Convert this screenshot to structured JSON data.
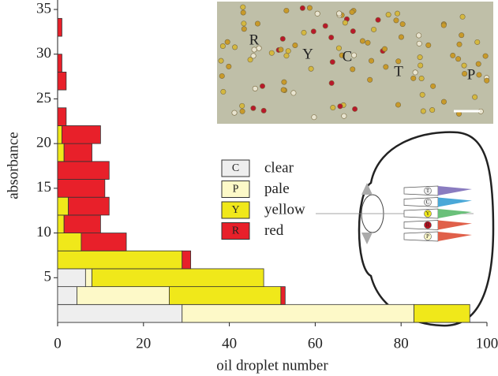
{
  "chart_data": {
    "type": "barh_histogram",
    "xlabel": "oil droplet number",
    "ylabel": "absorbance",
    "bins": [
      0,
      2,
      4,
      6,
      8,
      10,
      12,
      14,
      16,
      18,
      20,
      22,
      24,
      26,
      28,
      30,
      32,
      34
    ],
    "series": [
      {
        "name": "clear",
        "symbol": "C",
        "color": "#eeeeee",
        "values": [
          29,
          4.5,
          6.5,
          0,
          0,
          0,
          0,
          0,
          0,
          0,
          0,
          0,
          0,
          0,
          0,
          0,
          0
        ]
      },
      {
        "name": "pale",
        "symbol": "P",
        "color": "#fdf9c8",
        "values": [
          54,
          21.5,
          1.5,
          0,
          0,
          0,
          0,
          0,
          0,
          0,
          0,
          0,
          0,
          0,
          0,
          0,
          0
        ]
      },
      {
        "name": "yellow",
        "symbol": "Y",
        "color": "#f0e81a",
        "values": [
          13,
          26,
          40,
          29,
          5.5,
          1.5,
          2.5,
          0,
          0,
          1.5,
          1,
          0,
          0,
          0,
          0,
          0,
          0
        ]
      },
      {
        "name": "red",
        "symbol": "R",
        "color": "#e8202a",
        "values": [
          0,
          1,
          0,
          2,
          10.5,
          8.5,
          9.5,
          11,
          12,
          6.5,
          9,
          2,
          0,
          2,
          1,
          0,
          1
        ]
      }
    ],
    "xlim": [
      0,
      100
    ],
    "xticks": [
      0,
      20,
      40,
      60,
      80,
      100
    ],
    "ylim": [
      0,
      35
    ],
    "yticks": [
      5,
      10,
      15,
      20,
      25,
      30,
      35
    ],
    "photo_labels": [
      "R",
      "Y",
      "C",
      "T",
      "P"
    ],
    "eye_labels": [
      "T",
      "C",
      "Y",
      "R",
      "P"
    ]
  }
}
